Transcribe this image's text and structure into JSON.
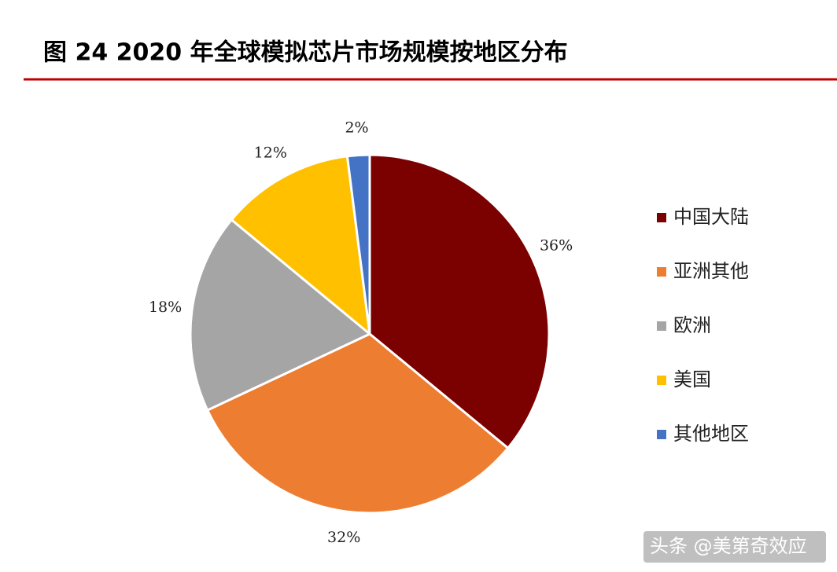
{
  "chart_data": {
    "type": "pie",
    "title": "图 24 2020 年全球模拟芯片市场规模按地区分布",
    "categories": [
      "中国大陆",
      "亚洲其他",
      "欧洲",
      "美国",
      "其他地区"
    ],
    "values": [
      36,
      32,
      18,
      12,
      2
    ],
    "value_labels": [
      "36%",
      "32%",
      "18%",
      "12%",
      "2%"
    ],
    "colors": [
      "#7b0000",
      "#ed7d31",
      "#a5a5a5",
      "#ffc000",
      "#4472c4"
    ],
    "legend": "right"
  },
  "watermark": "头条 @美第奇效应"
}
